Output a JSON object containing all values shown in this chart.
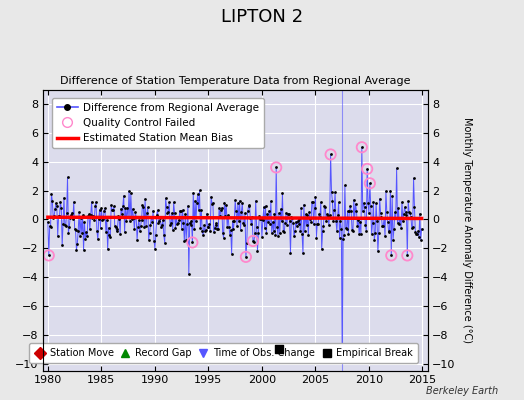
{
  "title": "LIPTON 2",
  "subtitle": "Difference of Station Temperature Data from Regional Average",
  "ylabel_right": "Monthly Temperature Anomaly Difference (°C)",
  "xlim": [
    1979.5,
    2015.5
  ],
  "ylim": [
    -10.5,
    9.0
  ],
  "yticks": [
    -10,
    -8,
    -6,
    -4,
    -2,
    0,
    2,
    4,
    6,
    8
  ],
  "xticks": [
    1980,
    1985,
    1990,
    1995,
    2000,
    2005,
    2010,
    2015
  ],
  "fig_bg_color": "#e8e8e8",
  "plot_bg_color": "#dcdcec",
  "grid_color": "#ffffff",
  "line_color": "#5555ff",
  "dot_color": "#000000",
  "bias_color": "#ff0000",
  "qc_edge_color": "#ff88cc",
  "footer": "Berkeley Earth",
  "empirical_break_x": 2001.6,
  "empirical_break_y": -9.0,
  "time_of_obs_change_x": 2007.5,
  "bias_slope": -0.0025,
  "bias_intercept": 0.15,
  "qc_events": {
    "1980.1": -2.5,
    "1993.5": -1.6,
    "1998.5": -2.6,
    "1999.2": -1.5,
    "2001.3": 3.6,
    "2006.4": 4.5,
    "2009.3": 5.0,
    "2009.8": 3.5,
    "2010.1": 2.5,
    "2012.1": -2.5,
    "2013.6": -2.5
  },
  "special_spikes": {
    "1993.2": -3.8,
    "2007.5": -9.3
  }
}
